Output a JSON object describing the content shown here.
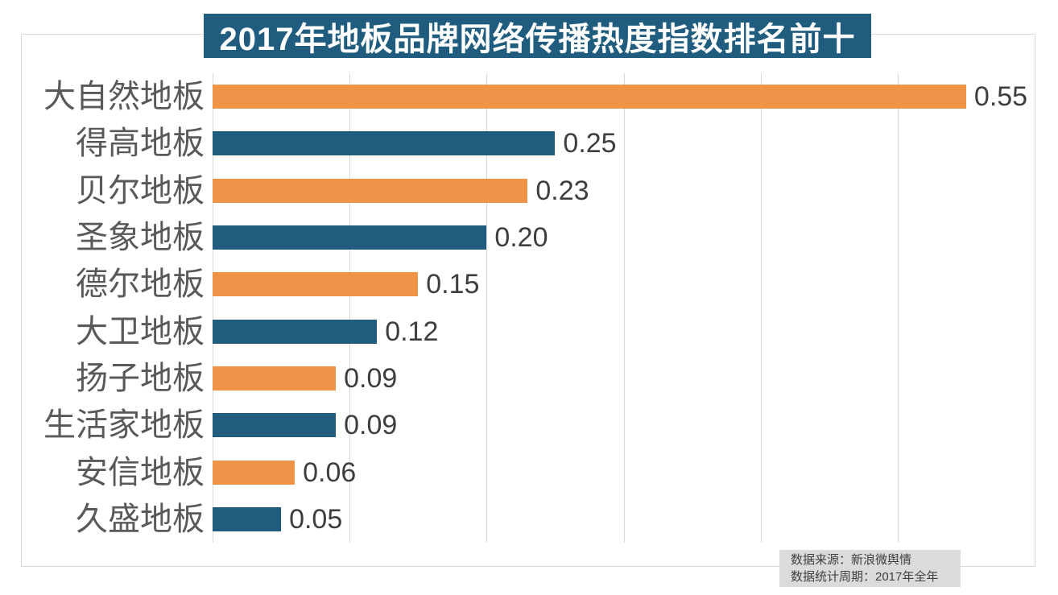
{
  "title": "2017年地板品牌网络传播热度指数排名前十",
  "footer": {
    "line1": "数据来源：新浪微舆情",
    "line2": "数据统计周期：2017年全年"
  },
  "colors": {
    "banner_bg": "#1F5C7E",
    "banner_fg": "#FFFFFF",
    "bar_orange": "#EF9349",
    "bar_blue": "#1F5C7E",
    "grid": "#D9D9D9",
    "label_text": "#595959",
    "value_text": "#3E3E3E",
    "footer_bg": "#DBDBDB",
    "footer_text": "#404040"
  },
  "chart_data": {
    "type": "bar",
    "orientation": "horizontal",
    "title": "2017年地板品牌网络传播热度指数排名前十",
    "categories": [
      "大自然地板",
      "得高地板",
      "贝尔地板",
      "圣象地板",
      "德尔地板",
      "大卫地板",
      "扬子地板",
      "生活家地板",
      "安信地板",
      "久盛地板"
    ],
    "values": [
      0.55,
      0.25,
      0.23,
      0.2,
      0.15,
      0.12,
      0.09,
      0.09,
      0.06,
      0.05
    ],
    "value_labels": [
      "0.55",
      "0.25",
      "0.23",
      "0.20",
      "0.15",
      "0.12",
      "0.09",
      "0.09",
      "0.06",
      "0.05"
    ],
    "bar_colors": [
      "#EF9349",
      "#1F5C7E",
      "#EF9349",
      "#1F5C7E",
      "#EF9349",
      "#1F5C7E",
      "#EF9349",
      "#1F5C7E",
      "#EF9349",
      "#1F5C7E"
    ],
    "xlabel": "",
    "ylabel": "",
    "xlim": [
      0,
      0.6
    ],
    "gridline_interval": 0.1,
    "grid": true,
    "legend": false,
    "source_note": "数据来源：新浪微舆情",
    "period_note": "数据统计周期：2017年全年"
  }
}
